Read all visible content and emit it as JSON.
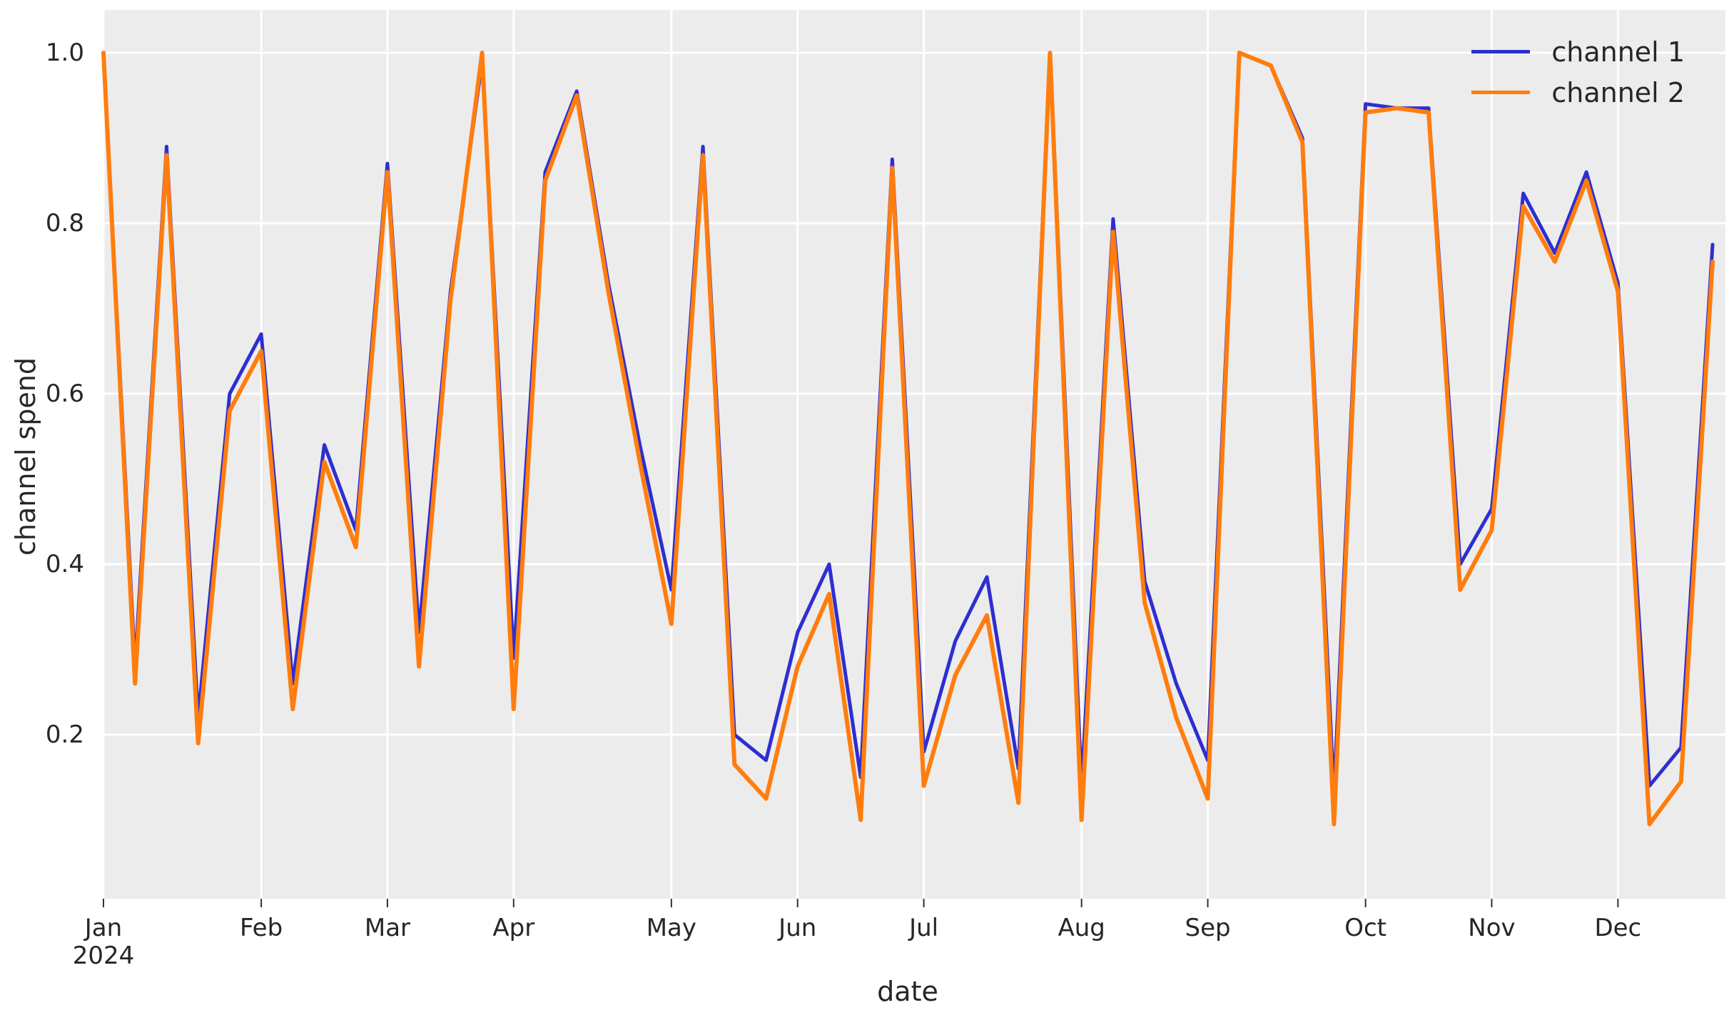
{
  "figure": {
    "plot_bg": "#ececec",
    "grid_color": "#ffffff",
    "text_color": "#262626",
    "tick_color": "#333333"
  },
  "chart_data": {
    "type": "line",
    "title": "",
    "xlabel": "date",
    "ylabel": "channel spend",
    "grid": true,
    "legend_position": "upper right",
    "ylim": [
      0.0,
      1.05
    ],
    "y_ticks": [
      0.2,
      0.4,
      0.6,
      0.8,
      1.0
    ],
    "y_tick_labels": [
      "0.2",
      "0.4",
      "0.6",
      "0.8",
      "1.0"
    ],
    "x_frequency": "weekly",
    "x": [
      "2024-01-01",
      "2024-01-08",
      "2024-01-15",
      "2024-01-22",
      "2024-01-29",
      "2024-02-05",
      "2024-02-12",
      "2024-02-19",
      "2024-02-26",
      "2024-03-04",
      "2024-03-11",
      "2024-03-18",
      "2024-03-25",
      "2024-04-01",
      "2024-04-08",
      "2024-04-15",
      "2024-04-22",
      "2024-04-29",
      "2024-05-06",
      "2024-05-13",
      "2024-05-20",
      "2024-05-27",
      "2024-06-03",
      "2024-06-10",
      "2024-06-17",
      "2024-06-24",
      "2024-07-01",
      "2024-07-08",
      "2024-07-15",
      "2024-07-22",
      "2024-07-29",
      "2024-08-05",
      "2024-08-12",
      "2024-08-19",
      "2024-08-26",
      "2024-09-02",
      "2024-09-09",
      "2024-09-16",
      "2024-09-23",
      "2024-09-30",
      "2024-10-07",
      "2024-10-14",
      "2024-10-21",
      "2024-10-28",
      "2024-11-04",
      "2024-11-11",
      "2024-11-18",
      "2024-11-25",
      "2024-12-02",
      "2024-12-09",
      "2024-12-16",
      "2024-12-23"
    ],
    "x_tick_labels": [
      {
        "label": "Jan",
        "sub": "2024",
        "week_index": 0
      },
      {
        "label": "Feb",
        "sub": "",
        "week_index": 5
      },
      {
        "label": "Mar",
        "sub": "",
        "week_index": 9
      },
      {
        "label": "Apr",
        "sub": "",
        "week_index": 13
      },
      {
        "label": "May",
        "sub": "",
        "week_index": 18
      },
      {
        "label": "Jun",
        "sub": "",
        "week_index": 22
      },
      {
        "label": "Jul",
        "sub": "",
        "week_index": 26
      },
      {
        "label": "Aug",
        "sub": "",
        "week_index": 31
      },
      {
        "label": "Sep",
        "sub": "",
        "week_index": 35
      },
      {
        "label": "Oct",
        "sub": "",
        "week_index": 40
      },
      {
        "label": "Nov",
        "sub": "",
        "week_index": 44
      },
      {
        "label": "Dec",
        "sub": "",
        "week_index": 48
      }
    ],
    "series": [
      {
        "name": "channel 1",
        "color": "#2e2ed2",
        "width": 5,
        "values": [
          1.0,
          0.28,
          0.89,
          0.22,
          0.6,
          0.67,
          0.26,
          0.54,
          0.44,
          0.87,
          0.32,
          0.72,
          0.99,
          0.29,
          0.86,
          0.955,
          0.73,
          0.54,
          0.37,
          0.89,
          0.2,
          0.17,
          0.32,
          0.4,
          0.15,
          0.875,
          0.18,
          0.31,
          0.385,
          0.16,
          1.0,
          0.14,
          0.805,
          0.38,
          0.26,
          0.17,
          1.0,
          0.985,
          0.9,
          0.13,
          0.94,
          0.935,
          0.935,
          0.4,
          0.465,
          0.835,
          0.765,
          0.86,
          0.73,
          0.14,
          0.185,
          0.775
        ]
      },
      {
        "name": "channel 2",
        "color": "#ff7d0e",
        "width": 6,
        "values": [
          1.0,
          0.26,
          0.88,
          0.19,
          0.58,
          0.65,
          0.23,
          0.52,
          0.42,
          0.86,
          0.28,
          0.71,
          1.0,
          0.23,
          0.85,
          0.95,
          0.72,
          0.52,
          0.33,
          0.88,
          0.165,
          0.125,
          0.28,
          0.365,
          0.1,
          0.865,
          0.14,
          0.27,
          0.34,
          0.12,
          1.0,
          0.1,
          0.79,
          0.355,
          0.22,
          0.125,
          1.0,
          0.985,
          0.895,
          0.095,
          0.93,
          0.935,
          0.93,
          0.37,
          0.44,
          0.82,
          0.755,
          0.85,
          0.72,
          0.095,
          0.145,
          0.755
        ]
      }
    ]
  }
}
